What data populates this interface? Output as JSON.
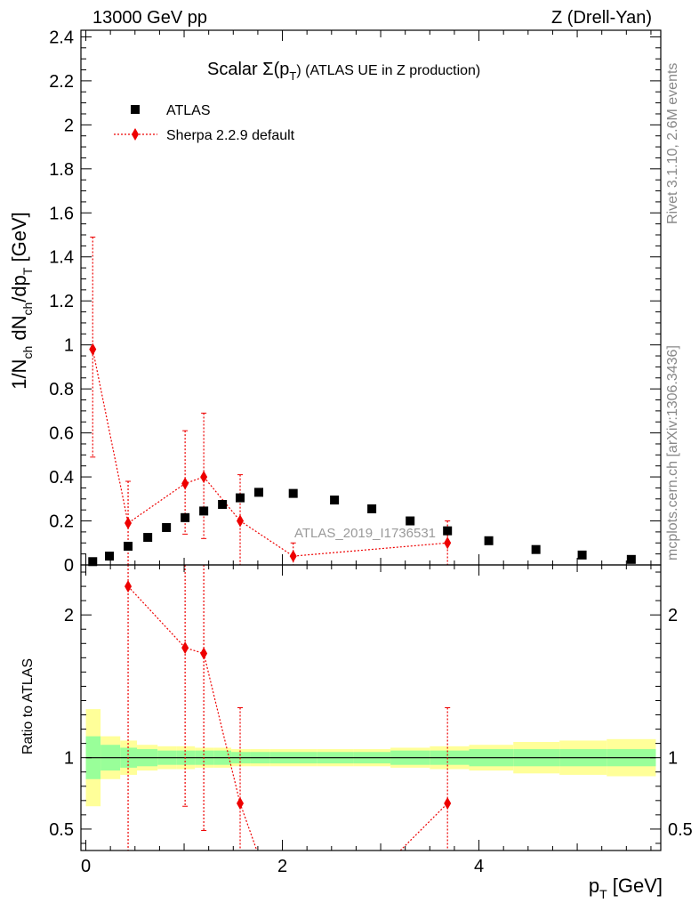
{
  "header": {
    "left": "13000 GeV pp",
    "right": "Z (Drell-Yan)"
  },
  "side_text": {
    "rivet": "Rivet 3.1.10,  2.6M events",
    "mcplots": "mcplots.cern.ch [arXiv:1306.3436]"
  },
  "watermark": "ATLAS_2019_I1736531",
  "colors": {
    "data": "#000000",
    "mc": "#ee0000",
    "band_inner": "#99ff99",
    "band_outer": "#ffff99"
  },
  "chart_data": [
    {
      "type": "scatter",
      "title_main": "Scalar Σ(p",
      "title_sub": "T",
      "title_rest": ") (ATLAS UE in Z production)",
      "ylabel": "1/N_ch dN_ch/dp_T [GeV]",
      "ylabel_parts": {
        "a": "1/N",
        "a_sub": "ch",
        "b": " dN",
        "b_sub": "ch",
        "c": "/dp",
        "c_sub": "T",
        "d": " [GeV]"
      },
      "xlim": [
        -0.05,
        5.85
      ],
      "ylim": [
        0,
        2.43
      ],
      "yticks": [
        0,
        0.2,
        0.4,
        0.6,
        0.8,
        1,
        1.2,
        1.4,
        1.6,
        1.8,
        2,
        2.2,
        2.4
      ],
      "ytick_labels": [
        "0",
        "0.2",
        "0.4",
        "0.6",
        "0.8",
        "1",
        "1.2",
        "1.4",
        "1.6",
        "1.8",
        "2",
        "2.2",
        "2.4"
      ],
      "legend": [
        "ATLAS",
        "Sherpa 2.2.9 default"
      ],
      "series": [
        {
          "name": "ATLAS",
          "x": [
            0.07,
            0.24,
            0.43,
            0.63,
            0.82,
            1.01,
            1.2,
            1.39,
            1.57,
            1.76,
            2.11,
            2.53,
            2.91,
            3.3,
            3.68,
            4.1,
            4.58,
            5.05,
            5.55
          ],
          "y": [
            0.015,
            0.04,
            0.085,
            0.125,
            0.17,
            0.215,
            0.245,
            0.275,
            0.305,
            0.33,
            0.325,
            0.295,
            0.255,
            0.2,
            0.155,
            0.11,
            0.07,
            0.045,
            0.025
          ]
        },
        {
          "name": "Sherpa 2.2.9 default",
          "x": [
            0.07,
            0.43,
            1.01,
            1.2,
            1.57,
            2.11,
            3.68
          ],
          "y": [
            0.98,
            0.19,
            0.37,
            0.4,
            0.2,
            0.04,
            0.1
          ],
          "err_lo": [
            0.49,
            0.0,
            0.14,
            0.12,
            0.0,
            0.0,
            0.0
          ],
          "err_hi": [
            1.49,
            0.38,
            0.61,
            0.69,
            0.41,
            0.1,
            0.2
          ]
        }
      ]
    },
    {
      "type": "scatter",
      "ylabel": "Ratio to ATLAS",
      "xlabel_main": "p",
      "xlabel_sub": "T",
      "xlabel_rest": " [GeV]",
      "xlim": [
        -0.05,
        5.85
      ],
      "xticks": [
        0,
        2,
        4
      ],
      "xtick_labels": [
        "0",
        "2",
        "4"
      ],
      "ylim": [
        0.35,
        2.35
      ],
      "yticks": [
        0.5,
        1,
        2
      ],
      "ytick_labels": [
        "0.5",
        "1",
        "2"
      ],
      "reference_line": 1,
      "bins": [
        0.0,
        0.15,
        0.35,
        0.52,
        0.73,
        0.92,
        1.11,
        1.3,
        1.48,
        1.67,
        1.87,
        2.35,
        2.72,
        3.1,
        3.5,
        3.9,
        4.35,
        4.82,
        5.3,
        5.8
      ],
      "band_inner_halfwidth": [
        0.15,
        0.09,
        0.07,
        0.06,
        0.05,
        0.05,
        0.05,
        0.05,
        0.04,
        0.04,
        0.04,
        0.04,
        0.04,
        0.05,
        0.05,
        0.06,
        0.06,
        0.06,
        0.06
      ],
      "band_outer_halfwidth": [
        0.34,
        0.15,
        0.12,
        0.09,
        0.08,
        0.08,
        0.07,
        0.07,
        0.06,
        0.06,
        0.06,
        0.06,
        0.06,
        0.07,
        0.08,
        0.09,
        0.11,
        0.12,
        0.13
      ],
      "series": [
        {
          "name": "Sherpa 2.2.9 default",
          "x": [
            0.43,
            1.01,
            1.2,
            1.57,
            3.68
          ],
          "y": [
            2.2,
            1.77,
            1.73,
            0.68,
            0.68
          ],
          "err_lo": [
            0.3,
            0.66,
            0.49,
            0.3,
            0.3
          ],
          "err_hi": [
            2.6,
            2.6,
            2.6,
            1.35,
            1.35
          ],
          "line_exit_low": [
            [
              1.57,
              0.68
            ],
            [
              1.74,
              0.3
            ]
          ],
          "line_enter_low": [
            [
              3.2,
              0.3
            ],
            [
              3.68,
              0.68
            ]
          ]
        }
      ]
    }
  ]
}
